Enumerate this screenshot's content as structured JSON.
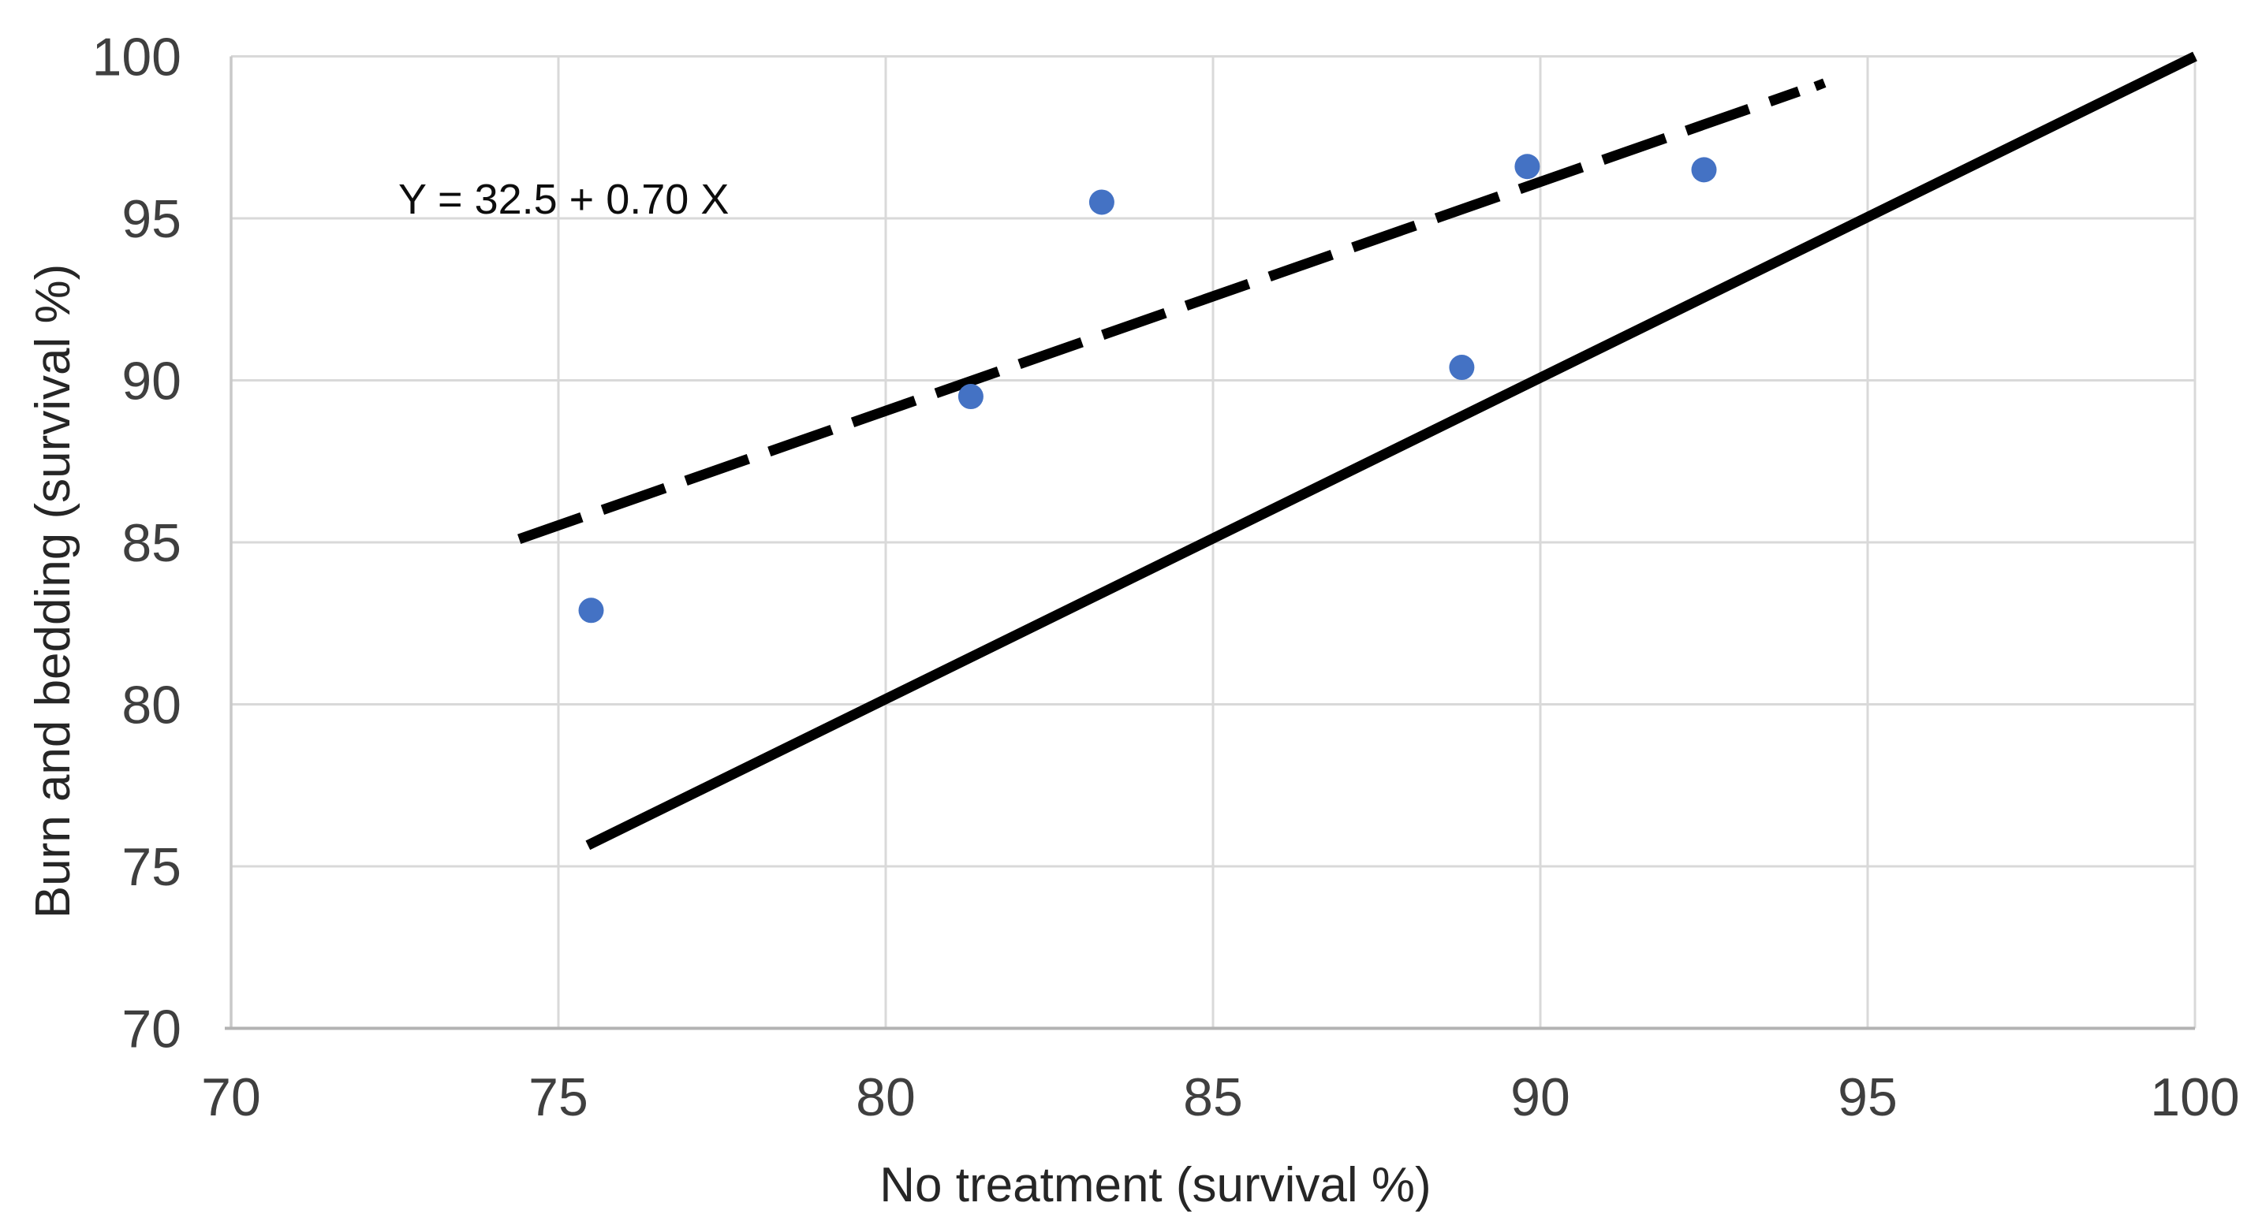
{
  "chart_data": {
    "type": "scatter",
    "title": "",
    "xlabel": "No treatment (survival %)",
    "ylabel": "Burn and bedding (survival %)",
    "xlim": [
      70,
      100
    ],
    "ylim": [
      70,
      100
    ],
    "xticks": [
      70,
      75,
      80,
      85,
      90,
      95,
      100
    ],
    "yticks": [
      70,
      75,
      80,
      85,
      90,
      95,
      100
    ],
    "grid": true,
    "legend_position": "none",
    "annotation": {
      "text": "Y = 32.5 + 0.70 X",
      "x": 72.55,
      "y": 95.15
    },
    "colors": {
      "marker": "#4472C4",
      "line": "#000000",
      "gridline": "#d9d9d9",
      "left_axis": "#c9c9c9",
      "bottom_axis": "#b3b3b3",
      "tick_label": "#3f3f3f",
      "axis_title": "#262626"
    },
    "series": [
      {
        "name": "burn-and-bedding-vs-no-treatment-points",
        "type": "scatter",
        "marker": "circle",
        "color": "#4472C4",
        "points": [
          {
            "x": 75.5,
            "y": 82.9
          },
          {
            "x": 81.3,
            "y": 89.5
          },
          {
            "x": 83.3,
            "y": 95.5
          },
          {
            "x": 88.8,
            "y": 90.4
          },
          {
            "x": 89.8,
            "y": 96.6
          },
          {
            "x": 92.5,
            "y": 96.5
          }
        ]
      },
      {
        "name": "regression-line",
        "type": "line",
        "style": "dashed",
        "color": "#000000",
        "equation": "Y = 32.5 + 0.70 X",
        "from": {
          "x": 74.4,
          "y": 85.1
        },
        "to": {
          "x": 93.95,
          "y": 98.92
        },
        "tip_fragment": {
          "from": {
            "x": 94.2,
            "y": 99.07
          },
          "to": {
            "x": 94.34,
            "y": 99.18
          }
        }
      },
      {
        "name": "identity-line",
        "type": "line",
        "style": "solid",
        "color": "#000000",
        "from": {
          "x": 75.45,
          "y": 75.65
        },
        "to": {
          "x": 100,
          "y": 100
        }
      }
    ]
  }
}
